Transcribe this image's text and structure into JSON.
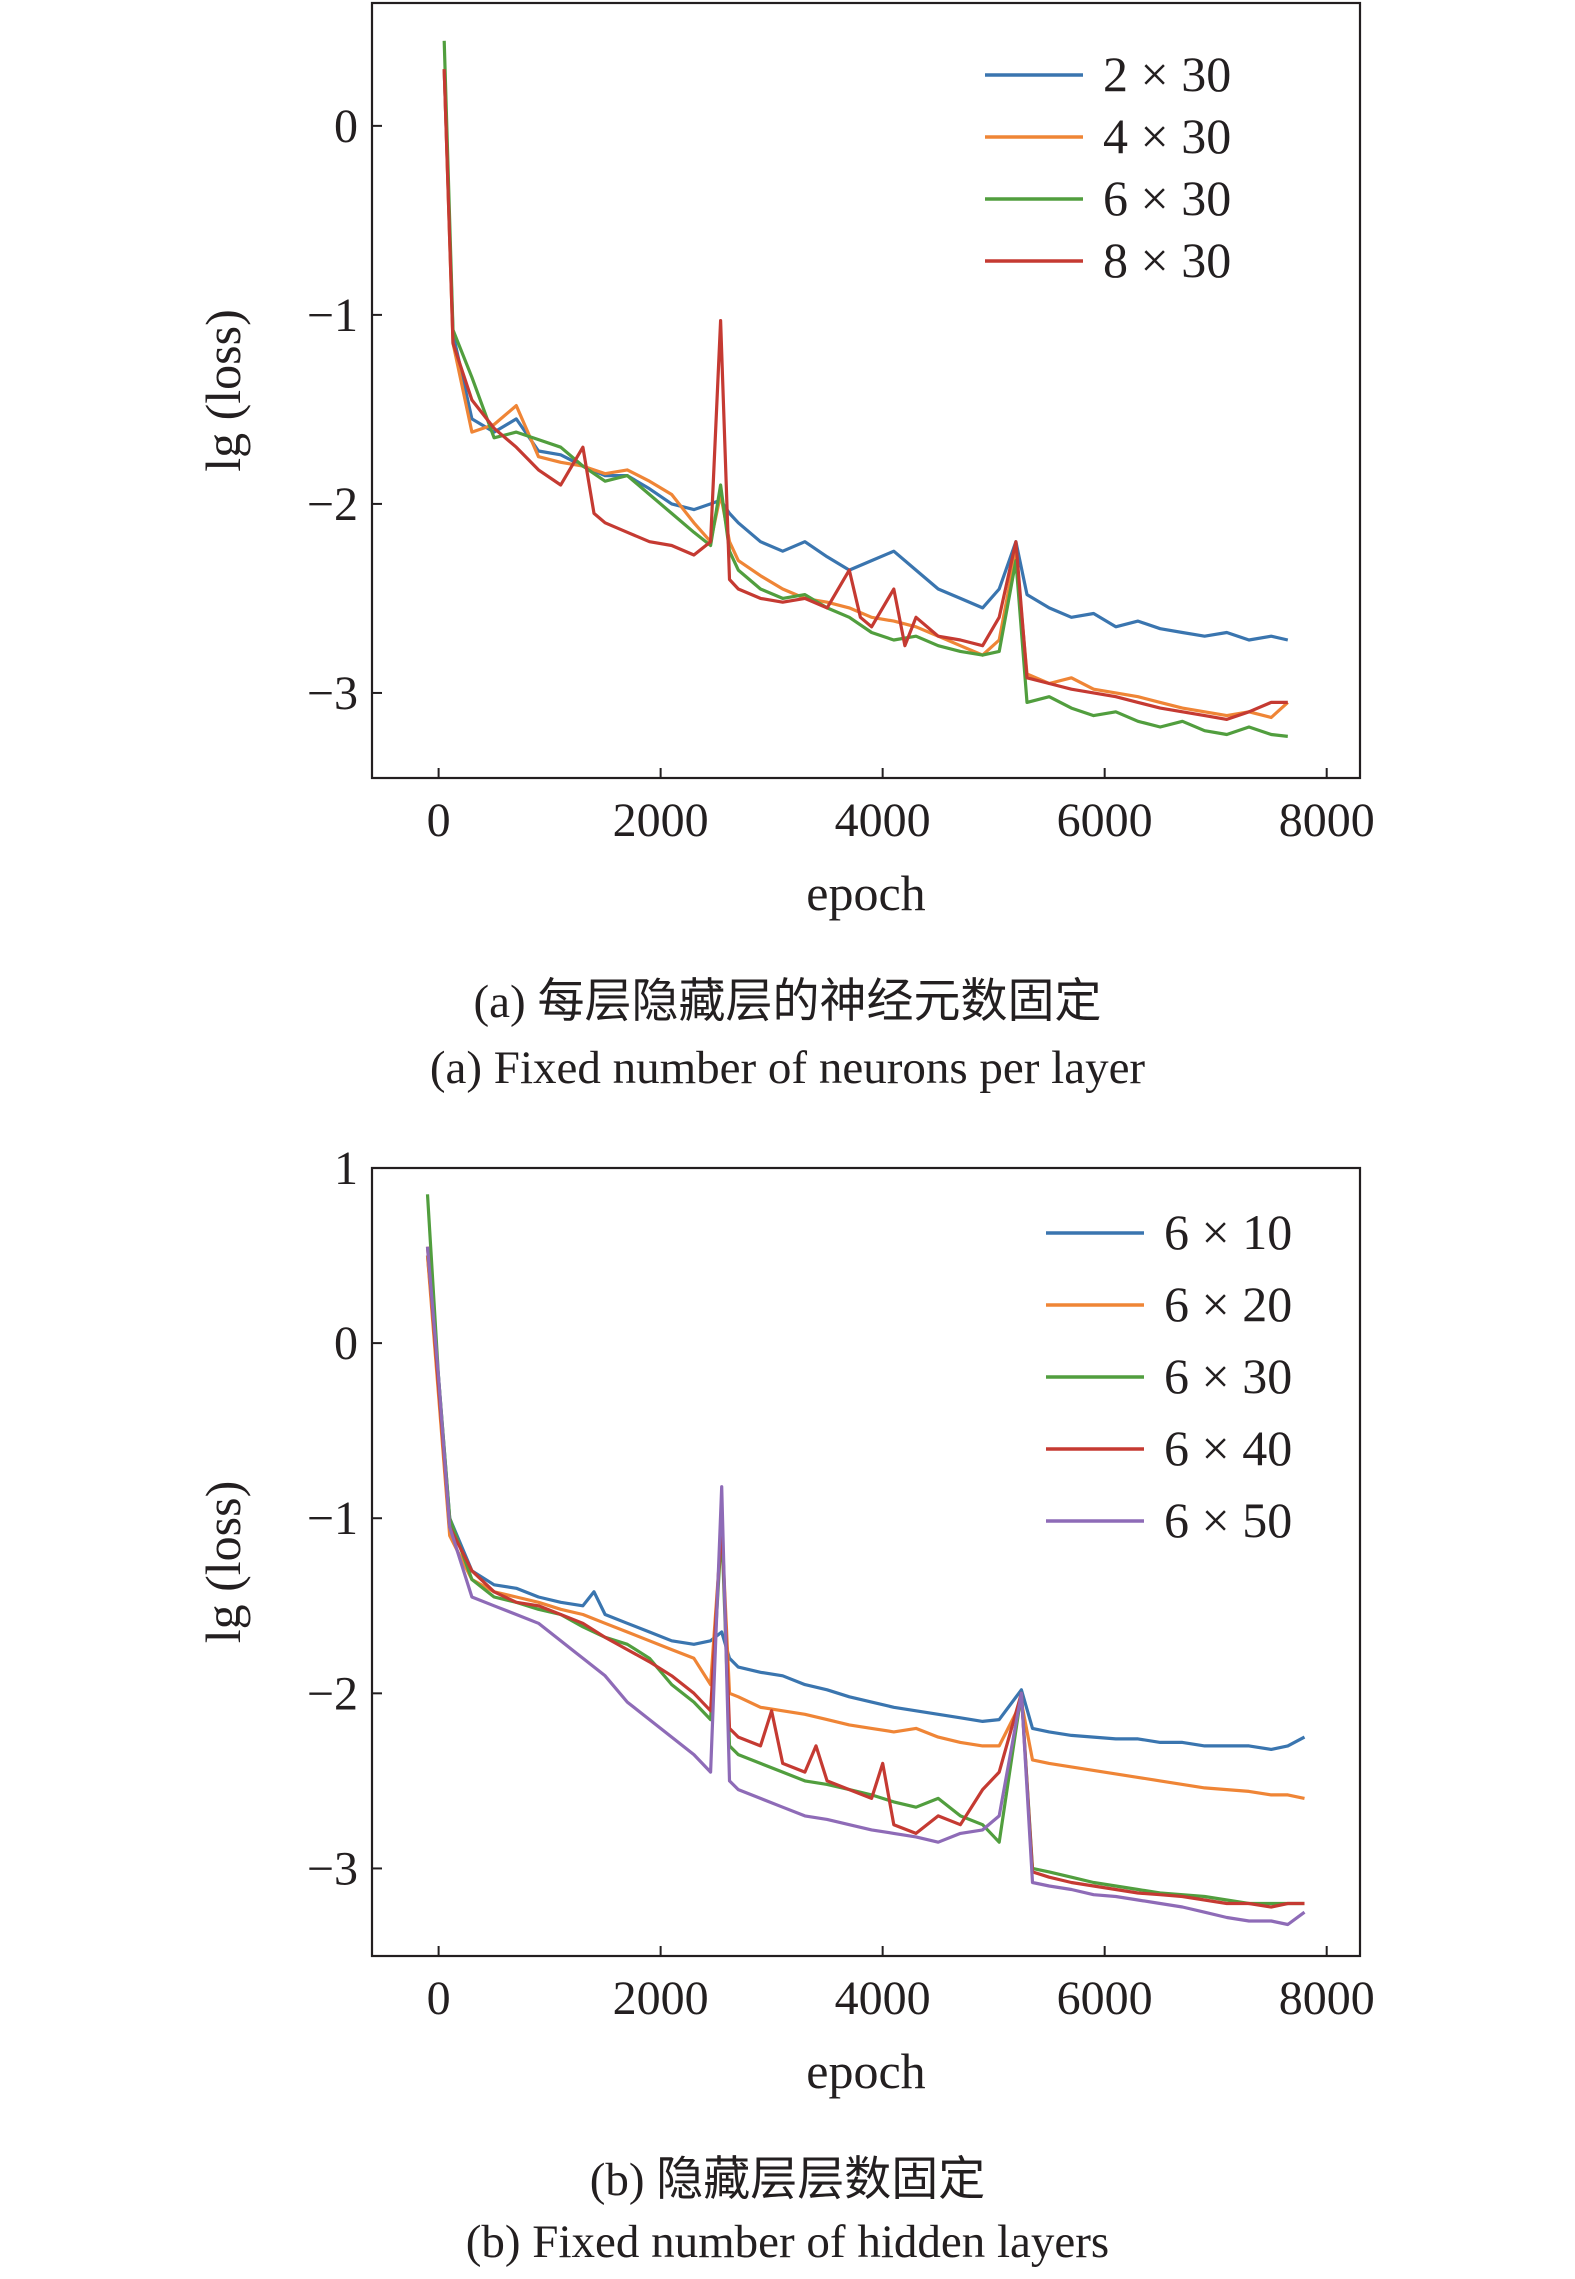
{
  "panels": [
    {
      "caption_cn": "(a) 每层隐藏层的神经元数固定",
      "caption_en": "(a) Fixed number of neurons per layer"
    },
    {
      "caption_cn": "(b) 隐藏层层数固定",
      "caption_en": "(b) Fixed number of hidden layers"
    }
  ],
  "chart_data": [
    {
      "type": "line",
      "title": "",
      "xlabel": "epoch",
      "ylabel": "lg (loss)",
      "xlim": [
        -600,
        8300
      ],
      "ylim": [
        -3.45,
        0.65
      ],
      "xticks": [
        0,
        2000,
        4000,
        6000,
        8000
      ],
      "xtick_labels": [
        "0",
        "2000",
        "4000",
        "6000",
        "8000"
      ],
      "yticks": [
        0,
        -1,
        -2,
        -3
      ],
      "ytick_labels": [
        "0",
        "−1",
        "−2",
        "−3"
      ],
      "grid": false,
      "legend_position": "top-right",
      "colors": [
        "#3a75af",
        "#ef8536",
        "#519e3e",
        "#c53a32"
      ],
      "series": [
        {
          "name": "2 × 30",
          "x": [
            50,
            130,
            300,
            500,
            700,
            900,
            1100,
            1300,
            1500,
            1700,
            1900,
            2100,
            2300,
            2450,
            2540,
            2620,
            2700,
            2900,
            3100,
            3300,
            3500,
            3700,
            3900,
            4100,
            4300,
            4500,
            4700,
            4900,
            5050,
            5200,
            5300,
            5500,
            5700,
            5900,
            6100,
            6300,
            6500,
            6700,
            6900,
            7100,
            7300,
            7500,
            7650
          ],
          "values": [
            0.3,
            -1.1,
            -1.55,
            -1.62,
            -1.55,
            -1.72,
            -1.74,
            -1.8,
            -1.85,
            -1.85,
            -1.92,
            -2.0,
            -2.03,
            -2.0,
            -1.98,
            -2.05,
            -2.1,
            -2.2,
            -2.25,
            -2.2,
            -2.28,
            -2.35,
            -2.3,
            -2.25,
            -2.35,
            -2.45,
            -2.5,
            -2.55,
            -2.45,
            -2.2,
            -2.48,
            -2.55,
            -2.6,
            -2.58,
            -2.65,
            -2.62,
            -2.66,
            -2.68,
            -2.7,
            -2.68,
            -2.72,
            -2.7,
            -2.72
          ]
        },
        {
          "name": "4 × 30",
          "x": [
            50,
            130,
            300,
            500,
            700,
            900,
            1100,
            1300,
            1500,
            1700,
            1900,
            2100,
            2300,
            2450,
            2540,
            2620,
            2700,
            2900,
            3100,
            3300,
            3500,
            3700,
            3900,
            4100,
            4300,
            4500,
            4700,
            4900,
            5050,
            5200,
            5300,
            5500,
            5700,
            5900,
            6100,
            6300,
            6500,
            6700,
            6900,
            7100,
            7300,
            7500,
            7650
          ],
          "values": [
            0.3,
            -1.15,
            -1.62,
            -1.58,
            -1.48,
            -1.75,
            -1.78,
            -1.8,
            -1.84,
            -1.82,
            -1.88,
            -1.95,
            -2.1,
            -2.2,
            -1.95,
            -2.2,
            -2.3,
            -2.38,
            -2.45,
            -2.5,
            -2.52,
            -2.55,
            -2.6,
            -2.62,
            -2.65,
            -2.7,
            -2.75,
            -2.8,
            -2.72,
            -2.25,
            -2.9,
            -2.95,
            -2.92,
            -2.98,
            -3.0,
            -3.02,
            -3.05,
            -3.08,
            -3.1,
            -3.12,
            -3.1,
            -3.13,
            -3.05
          ]
        },
        {
          "name": "6 × 30",
          "x": [
            50,
            130,
            300,
            500,
            700,
            900,
            1100,
            1300,
            1500,
            1700,
            1900,
            2100,
            2300,
            2450,
            2540,
            2620,
            2700,
            2900,
            3100,
            3300,
            3500,
            3700,
            3900,
            4100,
            4300,
            4500,
            4700,
            4900,
            5050,
            5200,
            5300,
            5500,
            5700,
            5900,
            6100,
            6300,
            6500,
            6700,
            6900,
            7100,
            7300,
            7500,
            7650
          ],
          "values": [
            0.45,
            -1.08,
            -1.33,
            -1.65,
            -1.62,
            -1.66,
            -1.7,
            -1.8,
            -1.88,
            -1.85,
            -1.95,
            -2.05,
            -2.15,
            -2.22,
            -1.9,
            -2.25,
            -2.35,
            -2.45,
            -2.5,
            -2.48,
            -2.55,
            -2.6,
            -2.68,
            -2.72,
            -2.7,
            -2.75,
            -2.78,
            -2.8,
            -2.78,
            -2.3,
            -3.05,
            -3.02,
            -3.08,
            -3.12,
            -3.1,
            -3.15,
            -3.18,
            -3.15,
            -3.2,
            -3.22,
            -3.18,
            -3.22,
            -3.23
          ]
        },
        {
          "name": "8 × 30",
          "x": [
            50,
            130,
            300,
            500,
            700,
            900,
            1100,
            1300,
            1400,
            1500,
            1700,
            1900,
            2100,
            2300,
            2450,
            2540,
            2620,
            2700,
            2900,
            3100,
            3300,
            3500,
            3700,
            3800,
            3900,
            4100,
            4200,
            4300,
            4500,
            4700,
            4900,
            5050,
            5200,
            5300,
            5500,
            5700,
            5900,
            6100,
            6300,
            6500,
            6700,
            6900,
            7100,
            7300,
            7500,
            7650
          ],
          "values": [
            0.3,
            -1.15,
            -1.45,
            -1.6,
            -1.7,
            -1.82,
            -1.9,
            -1.7,
            -2.05,
            -2.1,
            -2.15,
            -2.2,
            -2.22,
            -2.27,
            -2.2,
            -1.03,
            -2.4,
            -2.45,
            -2.5,
            -2.52,
            -2.5,
            -2.55,
            -2.35,
            -2.6,
            -2.65,
            -2.45,
            -2.75,
            -2.6,
            -2.7,
            -2.72,
            -2.75,
            -2.6,
            -2.2,
            -2.92,
            -2.95,
            -2.98,
            -3.0,
            -3.02,
            -3.05,
            -3.08,
            -3.1,
            -3.12,
            -3.14,
            -3.1,
            -3.05,
            -3.05
          ]
        }
      ]
    },
    {
      "type": "line",
      "title": "",
      "xlabel": "epoch",
      "ylabel": "lg (loss)",
      "xlim": [
        -600,
        8300
      ],
      "ylim": [
        -3.5,
        1.0
      ],
      "xticks": [
        0,
        2000,
        4000,
        6000,
        8000
      ],
      "xtick_labels": [
        "0",
        "2000",
        "4000",
        "6000",
        "8000"
      ],
      "yticks": [
        1,
        0,
        -1,
        -2,
        -3
      ],
      "ytick_labels": [
        "1",
        "0",
        "−1",
        "−2",
        "−3"
      ],
      "grid": false,
      "legend_position": "top-right",
      "colors": [
        "#3a75af",
        "#ef8536",
        "#519e3e",
        "#c53a32",
        "#8e6bb7"
      ],
      "series": [
        {
          "name": "6 × 10",
          "x": [
            -100,
            0,
            100,
            300,
            500,
            700,
            900,
            1100,
            1300,
            1400,
            1500,
            1700,
            1900,
            2100,
            2300,
            2450,
            2550,
            2620,
            2700,
            2900,
            3100,
            3300,
            3500,
            3700,
            3900,
            4100,
            4300,
            4500,
            4700,
            4900,
            5050,
            5250,
            5350,
            5500,
            5700,
            5900,
            6100,
            6300,
            6500,
            6700,
            6900,
            7100,
            7300,
            7500,
            7650,
            7800
          ],
          "values": [
            0.5,
            -0.2,
            -1.0,
            -1.3,
            -1.38,
            -1.4,
            -1.45,
            -1.48,
            -1.5,
            -1.42,
            -1.55,
            -1.6,
            -1.65,
            -1.7,
            -1.72,
            -1.7,
            -1.65,
            -1.8,
            -1.85,
            -1.88,
            -1.9,
            -1.95,
            -1.98,
            -2.02,
            -2.05,
            -2.08,
            -2.1,
            -2.12,
            -2.14,
            -2.16,
            -2.15,
            -1.98,
            -2.2,
            -2.22,
            -2.24,
            -2.25,
            -2.26,
            -2.26,
            -2.28,
            -2.28,
            -2.3,
            -2.3,
            -2.3,
            -2.32,
            -2.3,
            -2.25
          ]
        },
        {
          "name": "6 × 20",
          "x": [
            -100,
            0,
            100,
            300,
            500,
            700,
            900,
            1100,
            1300,
            1500,
            1700,
            1900,
            2100,
            2300,
            2450,
            2550,
            2620,
            2700,
            2900,
            3100,
            3300,
            3500,
            3700,
            3900,
            4100,
            4300,
            4500,
            4700,
            4900,
            5050,
            5250,
            5350,
            5500,
            5700,
            5900,
            6100,
            6300,
            6500,
            6700,
            6900,
            7100,
            7300,
            7500,
            7650,
            7800
          ],
          "values": [
            0.5,
            -0.3,
            -1.1,
            -1.35,
            -1.42,
            -1.45,
            -1.48,
            -1.52,
            -1.55,
            -1.6,
            -1.65,
            -1.7,
            -1.75,
            -1.8,
            -1.95,
            -1.05,
            -2.0,
            -2.02,
            -2.08,
            -2.1,
            -2.12,
            -2.15,
            -2.18,
            -2.2,
            -2.22,
            -2.2,
            -2.25,
            -2.28,
            -2.3,
            -2.3,
            -2.05,
            -2.38,
            -2.4,
            -2.42,
            -2.44,
            -2.46,
            -2.48,
            -2.5,
            -2.52,
            -2.54,
            -2.55,
            -2.56,
            -2.58,
            -2.58,
            -2.6
          ]
        },
        {
          "name": "6 × 30",
          "x": [
            -100,
            0,
            100,
            300,
            500,
            700,
            900,
            1100,
            1300,
            1500,
            1700,
            1900,
            2100,
            2300,
            2450,
            2550,
            2620,
            2700,
            2900,
            3100,
            3300,
            3500,
            3700,
            3900,
            4100,
            4300,
            4500,
            4700,
            4900,
            5050,
            5250,
            5350,
            5500,
            5700,
            5900,
            6100,
            6300,
            6500,
            6700,
            6900,
            7100,
            7300,
            7500,
            7650,
            7800
          ],
          "values": [
            0.85,
            -0.2,
            -1.0,
            -1.35,
            -1.45,
            -1.48,
            -1.52,
            -1.55,
            -1.62,
            -1.68,
            -1.72,
            -1.8,
            -1.95,
            -2.05,
            -2.15,
            -1.05,
            -2.3,
            -2.35,
            -2.4,
            -2.45,
            -2.5,
            -2.52,
            -2.55,
            -2.58,
            -2.62,
            -2.65,
            -2.6,
            -2.7,
            -2.75,
            -2.85,
            -2.0,
            -3.0,
            -3.02,
            -3.05,
            -3.08,
            -3.1,
            -3.12,
            -3.14,
            -3.15,
            -3.16,
            -3.18,
            -3.2,
            -3.2,
            -3.2,
            -3.2
          ]
        },
        {
          "name": "6 × 40",
          "x": [
            -100,
            0,
            100,
            300,
            500,
            700,
            900,
            1100,
            1300,
            1500,
            1700,
            1900,
            2100,
            2300,
            2450,
            2550,
            2620,
            2700,
            2900,
            3000,
            3100,
            3300,
            3400,
            3500,
            3700,
            3900,
            4000,
            4100,
            4300,
            4500,
            4700,
            4900,
            5050,
            5250,
            5350,
            5500,
            5700,
            5900,
            6100,
            6300,
            6500,
            6700,
            6900,
            7100,
            7300,
            7500,
            7650,
            7800
          ],
          "values": [
            0.55,
            -0.25,
            -1.05,
            -1.3,
            -1.42,
            -1.48,
            -1.5,
            -1.55,
            -1.6,
            -1.68,
            -1.75,
            -1.82,
            -1.9,
            -2.0,
            -2.1,
            -1.0,
            -2.2,
            -2.25,
            -2.3,
            -2.1,
            -2.4,
            -2.45,
            -2.3,
            -2.5,
            -2.55,
            -2.6,
            -2.4,
            -2.75,
            -2.8,
            -2.7,
            -2.75,
            -2.55,
            -2.45,
            -2.0,
            -3.02,
            -3.05,
            -3.08,
            -3.1,
            -3.12,
            -3.14,
            -3.15,
            -3.16,
            -3.18,
            -3.2,
            -3.2,
            -3.22,
            -3.2,
            -3.2
          ]
        },
        {
          "name": "6 × 50",
          "x": [
            -100,
            0,
            100,
            300,
            500,
            700,
            900,
            1100,
            1300,
            1500,
            1700,
            1900,
            2100,
            2300,
            2450,
            2550,
            2620,
            2700,
            2900,
            3100,
            3300,
            3500,
            3700,
            3900,
            4100,
            4300,
            4500,
            4700,
            4900,
            5050,
            5250,
            5350,
            5500,
            5700,
            5900,
            6100,
            6300,
            6500,
            6700,
            6900,
            7100,
            7300,
            7500,
            7650,
            7800
          ],
          "values": [
            0.55,
            -0.2,
            -1.05,
            -1.45,
            -1.5,
            -1.55,
            -1.6,
            -1.7,
            -1.8,
            -1.9,
            -2.05,
            -2.15,
            -2.25,
            -2.35,
            -2.45,
            -0.82,
            -2.5,
            -2.55,
            -2.6,
            -2.65,
            -2.7,
            -2.72,
            -2.75,
            -2.78,
            -2.8,
            -2.82,
            -2.85,
            -2.8,
            -2.78,
            -2.7,
            -2.0,
            -3.08,
            -3.1,
            -3.12,
            -3.15,
            -3.16,
            -3.18,
            -3.2,
            -3.22,
            -3.25,
            -3.28,
            -3.3,
            -3.3,
            -3.32,
            -3.25
          ]
        }
      ]
    }
  ]
}
